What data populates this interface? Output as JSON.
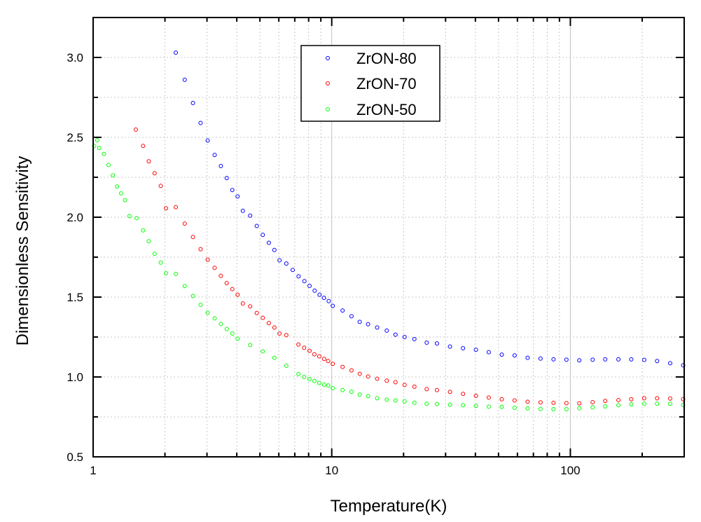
{
  "chart_data": {
    "type": "scatter",
    "title": "",
    "xlabel": "Temperature(K)",
    "ylabel": "Dimensionless Sensitivity",
    "xscale": "log",
    "xlim": [
      1,
      300
    ],
    "ylim": [
      0.5,
      3.25
    ],
    "x_ticks": [
      1,
      10,
      100
    ],
    "x_tick_labels": [
      "1",
      "10",
      "100"
    ],
    "y_ticks": [
      0.5,
      1.0,
      1.5,
      2.0,
      2.5,
      3.0
    ],
    "y_tick_labels": [
      "0.5",
      "1.0",
      "1.5",
      "2.0",
      "2.5",
      "3.0"
    ],
    "grid": true,
    "legend_position": "top-center",
    "marker": "open-circle",
    "series": [
      {
        "name": "ZrON-80",
        "color": "#0000ff",
        "x": [
          2.22,
          2.42,
          2.62,
          2.82,
          3.02,
          3.23,
          3.43,
          3.63,
          3.83,
          4.03,
          4.24,
          4.55,
          4.85,
          5.14,
          5.45,
          5.75,
          6.04,
          6.45,
          6.86,
          7.26,
          7.68,
          8.07,
          8.48,
          8.89,
          9.28,
          9.71,
          10.1,
          11.1,
          12.1,
          13.1,
          14.2,
          15.5,
          17.0,
          18.5,
          20.2,
          22.2,
          25.0,
          27.6,
          31.3,
          35.5,
          40.2,
          45.5,
          51.6,
          58.4,
          66.2,
          75.0,
          85.0,
          96.3,
          109,
          124,
          140,
          159,
          180,
          204,
          231,
          262,
          297
        ],
        "y": [
          3.03,
          2.86,
          2.715,
          2.59,
          2.48,
          2.39,
          2.32,
          2.245,
          2.17,
          2.13,
          2.04,
          2.01,
          1.945,
          1.89,
          1.84,
          1.795,
          1.73,
          1.71,
          1.67,
          1.63,
          1.6,
          1.57,
          1.54,
          1.515,
          1.495,
          1.475,
          1.445,
          1.416,
          1.38,
          1.345,
          1.33,
          1.31,
          1.29,
          1.265,
          1.25,
          1.237,
          1.215,
          1.21,
          1.19,
          1.18,
          1.17,
          1.155,
          1.14,
          1.135,
          1.12,
          1.115,
          1.11,
          1.108,
          1.104,
          1.108,
          1.11,
          1.11,
          1.11,
          1.107,
          1.1,
          1.086,
          1.073
        ]
      },
      {
        "name": "ZrON-70",
        "color": "#ff0000",
        "x": [
          1.51,
          1.62,
          1.71,
          1.81,
          1.92,
          2.02,
          2.22,
          2.42,
          2.62,
          2.82,
          3.02,
          3.23,
          3.43,
          3.63,
          3.83,
          4.03,
          4.24,
          4.55,
          4.85,
          5.14,
          5.45,
          5.75,
          6.04,
          6.45,
          7.25,
          7.66,
          8.07,
          8.46,
          8.87,
          9.29,
          9.66,
          10.1,
          11.1,
          12.1,
          13.1,
          14.2,
          15.5,
          17.0,
          18.5,
          20.2,
          22.2,
          25.0,
          27.6,
          31.3,
          35.5,
          40.2,
          45.5,
          51.6,
          58.4,
          66.2,
          75.0,
          85.0,
          96.3,
          109,
          124,
          140,
          159,
          180,
          204,
          231,
          262,
          297
        ],
        "y": [
          2.548,
          2.446,
          2.35,
          2.275,
          2.196,
          2.056,
          2.063,
          1.96,
          1.876,
          1.8,
          1.734,
          1.683,
          1.633,
          1.587,
          1.55,
          1.515,
          1.46,
          1.442,
          1.4,
          1.37,
          1.337,
          1.31,
          1.272,
          1.262,
          1.203,
          1.183,
          1.164,
          1.142,
          1.129,
          1.113,
          1.1,
          1.082,
          1.063,
          1.041,
          1.02,
          1.003,
          0.989,
          0.977,
          0.967,
          0.95,
          0.939,
          0.924,
          0.918,
          0.907,
          0.894,
          0.882,
          0.871,
          0.86,
          0.853,
          0.845,
          0.841,
          0.838,
          0.836,
          0.835,
          0.842,
          0.85,
          0.855,
          0.861,
          0.867,
          0.867,
          0.865,
          0.861
        ]
      },
      {
        "name": "ZrON-50",
        "color": "#00ff00",
        "x": [
          1.01,
          1.04,
          1.06,
          1.11,
          1.16,
          1.21,
          1.26,
          1.31,
          1.36,
          1.42,
          1.52,
          1.62,
          1.71,
          1.81,
          1.92,
          2.02,
          2.22,
          2.42,
          2.62,
          2.82,
          3.02,
          3.23,
          3.43,
          3.63,
          3.83,
          4.03,
          4.55,
          5.14,
          5.75,
          6.45,
          7.25,
          7.66,
          8.07,
          8.46,
          8.87,
          9.29,
          9.66,
          10.1,
          11.1,
          12.1,
          13.1,
          14.2,
          15.5,
          17.0,
          18.5,
          20.2,
          22.2,
          25.0,
          27.6,
          31.3,
          35.5,
          40.2,
          45.5,
          51.6,
          58.4,
          66.2,
          75.0,
          85.0,
          96.3,
          109,
          124,
          140,
          159,
          180,
          204,
          231,
          262,
          297
        ],
        "y": [
          2.446,
          2.482,
          2.433,
          2.396,
          2.327,
          2.262,
          2.192,
          2.149,
          2.107,
          2.007,
          1.994,
          1.918,
          1.85,
          1.771,
          1.716,
          1.649,
          1.645,
          1.569,
          1.507,
          1.452,
          1.402,
          1.367,
          1.332,
          1.3,
          1.272,
          1.24,
          1.2,
          1.16,
          1.12,
          1.07,
          1.018,
          1.0,
          0.987,
          0.975,
          0.962,
          0.952,
          0.947,
          0.93,
          0.918,
          0.908,
          0.89,
          0.88,
          0.867,
          0.858,
          0.853,
          0.847,
          0.839,
          0.833,
          0.83,
          0.826,
          0.823,
          0.819,
          0.814,
          0.813,
          0.807,
          0.803,
          0.8,
          0.798,
          0.798,
          0.804,
          0.81,
          0.816,
          0.823,
          0.829,
          0.833,
          0.833,
          0.832,
          0.825
        ]
      }
    ]
  }
}
